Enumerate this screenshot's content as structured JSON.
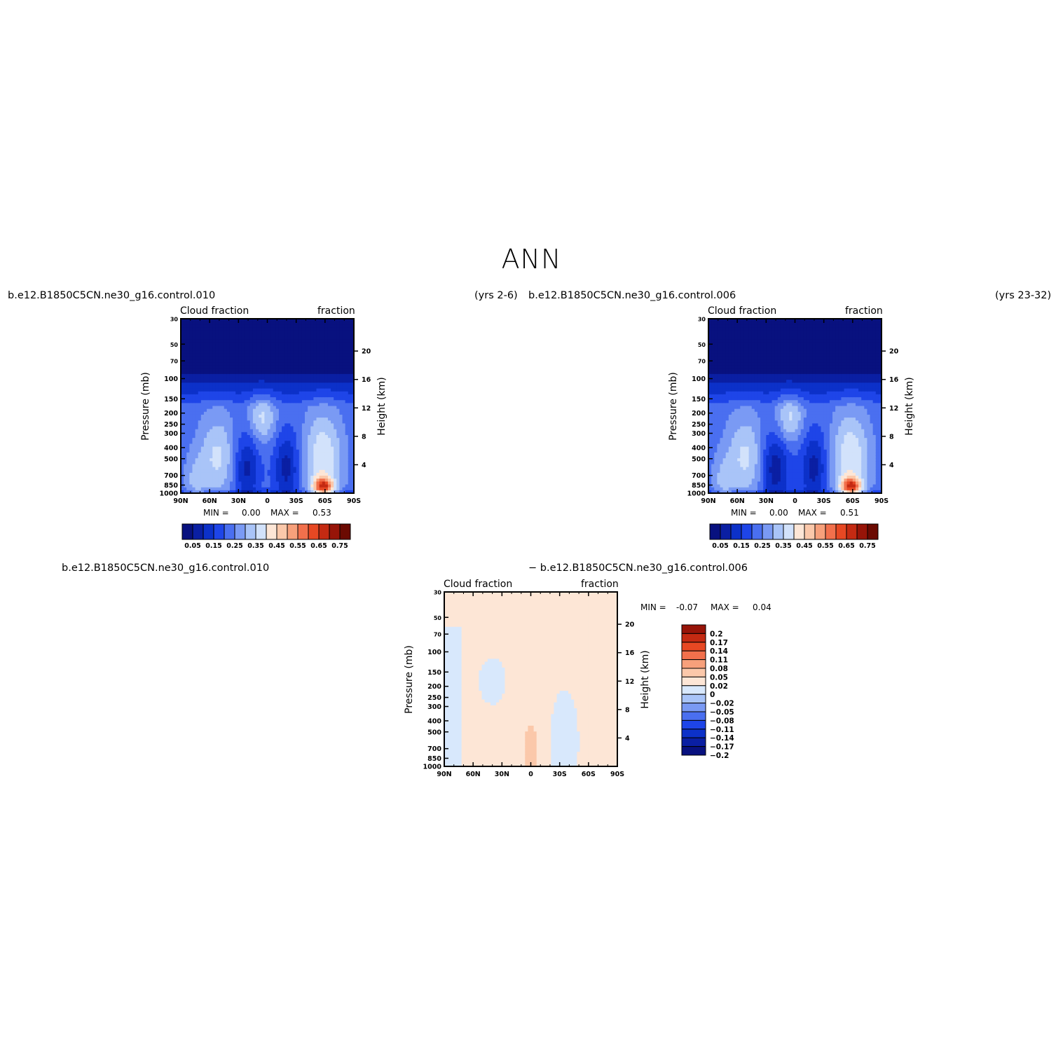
{
  "figure_title": "ANN",
  "case_titles": {
    "top_left_case": "b.e12.B1850C5CN.ne30_g16.control.010",
    "top_left_years": "(yrs 2-6)",
    "top_right_case": "b.e12.B1850C5CN.ne30_g16.control.006",
    "top_right_years": "(yrs 23-32)",
    "diff_left_case": "b.e12.B1850C5CN.ne30_g16.control.010",
    "diff_right_case": "− b.e12.B1850C5CN.ne30_g16.control.006"
  },
  "colors": {
    "field_levels": [
      "#08117f",
      "#0a1fa3",
      "#0c31c9",
      "#1e45e8",
      "#4a6ff0",
      "#7a9af4",
      "#a9c4f8",
      "#d2e2fb",
      "#fde6d6",
      "#fbc8aa",
      "#f7a07b",
      "#f2704c",
      "#e74823",
      "#c42a12",
      "#971408",
      "#6b0a02"
    ],
    "diff_levels": [
      "#08117f",
      "#0a1fa3",
      "#0c31c9",
      "#1e45e8",
      "#4a6ff0",
      "#7a9af4",
      "#a9c4f8",
      "#d8e8fc",
      "#fde6d6",
      "#fbc8aa",
      "#f7a07b",
      "#f2704c",
      "#e74823",
      "#c42a12",
      "#971408"
    ]
  },
  "chart_data": [
    {
      "type": "heatmap",
      "panel": "control.010",
      "left_title": "Cloud fraction",
      "right_title": "fraction",
      "ylabel": "Pressure (mb)",
      "ylabel_right": "Height (km)",
      "x_ticks": [
        "90N",
        "60N",
        "30N",
        "0",
        "30S",
        "60S",
        "90S"
      ],
      "x_values": [
        90,
        60,
        30,
        0,
        -30,
        -60,
        -90
      ],
      "y_ticks": [
        30,
        50,
        70,
        100,
        150,
        200,
        250,
        300,
        400,
        500,
        700,
        850,
        1000
      ],
      "y_ticks_labels": [
        "30",
        "50",
        "70",
        "100",
        "150",
        "200",
        "250",
        "300",
        "400",
        "500",
        "700",
        "850",
        "1000"
      ],
      "height_ticks": [
        20,
        16,
        12,
        8,
        4
      ],
      "xlim": [
        90,
        -90
      ],
      "ylim": [
        1000,
        30
      ],
      "min_label": "MIN =",
      "min_value": "0.00",
      "max_label": "MAX =",
      "max_value": "0.53",
      "colorbar_ticks": [
        "0.05",
        "0.15",
        "0.25",
        "0.35",
        "0.45",
        "0.55",
        "0.65",
        "0.75"
      ],
      "levels": [
        0.05,
        0.1,
        0.15,
        0.2,
        0.25,
        0.3,
        0.35,
        0.4,
        0.45,
        0.5,
        0.55,
        0.6,
        0.65,
        0.7,
        0.75
      ],
      "grid": false
    },
    {
      "type": "heatmap",
      "panel": "control.006",
      "left_title": "Cloud fraction",
      "right_title": "fraction",
      "ylabel": "Pressure (mb)",
      "ylabel_right": "Height (km)",
      "x_ticks": [
        "90N",
        "60N",
        "30N",
        "0",
        "30S",
        "60S",
        "90S"
      ],
      "x_values": [
        90,
        60,
        30,
        0,
        -30,
        -60,
        -90
      ],
      "y_ticks": [
        30,
        50,
        70,
        100,
        150,
        200,
        250,
        300,
        400,
        500,
        700,
        850,
        1000
      ],
      "y_ticks_labels": [
        "30",
        "50",
        "70",
        "100",
        "150",
        "200",
        "250",
        "300",
        "400",
        "500",
        "700",
        "850",
        "1000"
      ],
      "height_ticks": [
        20,
        16,
        12,
        8,
        4
      ],
      "xlim": [
        90,
        -90
      ],
      "ylim": [
        1000,
        30
      ],
      "min_label": "MIN =",
      "min_value": "0.00",
      "max_label": "MAX =",
      "max_value": "0.51",
      "colorbar_ticks": [
        "0.05",
        "0.15",
        "0.25",
        "0.35",
        "0.45",
        "0.55",
        "0.65",
        "0.75"
      ],
      "levels": [
        0.05,
        0.1,
        0.15,
        0.2,
        0.25,
        0.3,
        0.35,
        0.4,
        0.45,
        0.5,
        0.55,
        0.6,
        0.65,
        0.7,
        0.75
      ],
      "grid": false
    },
    {
      "type": "heatmap",
      "panel": "difference",
      "left_title": "Cloud fraction",
      "right_title": "fraction",
      "ylabel": "Pressure (mb)",
      "ylabel_right": "Height (km)",
      "x_ticks": [
        "90N",
        "60N",
        "30N",
        "0",
        "30S",
        "60S",
        "90S"
      ],
      "x_values": [
        90,
        60,
        30,
        0,
        -30,
        -60,
        -90
      ],
      "y_ticks": [
        30,
        50,
        70,
        100,
        150,
        200,
        250,
        300,
        400,
        500,
        700,
        850,
        1000
      ],
      "y_ticks_labels": [
        "30",
        "50",
        "70",
        "100",
        "150",
        "200",
        "250",
        "300",
        "400",
        "500",
        "700",
        "850",
        "1000"
      ],
      "height_ticks": [
        20,
        16,
        12,
        8,
        4
      ],
      "xlim": [
        90,
        -90
      ],
      "ylim": [
        1000,
        30
      ],
      "min_label": "MIN =",
      "min_value": "-0.07",
      "max_label": "MAX =",
      "max_value": "0.04",
      "colorbar_ticks": [
        "0.2",
        "0.17",
        "0.14",
        "0.11",
        "0.08",
        "0.05",
        "0.02",
        "0",
        "−0.02",
        "−0.05",
        "−0.08",
        "−0.11",
        "−0.14",
        "−0.17",
        "−0.2"
      ],
      "grid": false
    }
  ]
}
